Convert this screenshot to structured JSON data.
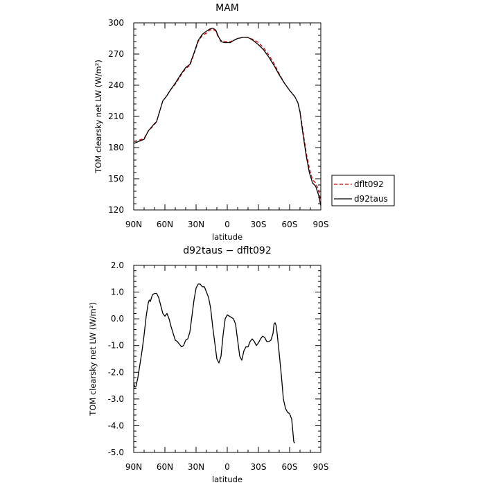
{
  "chart_data": [
    {
      "type": "line",
      "title": "MAM",
      "xlabel": "latitude",
      "ylabel": "TOM clearsky net LW (W/m²)",
      "xlim": [
        90,
        -90
      ],
      "ylim": [
        120,
        300
      ],
      "x_ticks": [
        90,
        60,
        30,
        0,
        -30,
        -60,
        -90
      ],
      "x_tick_labels": [
        "90N",
        "60N",
        "30N",
        "0",
        "30S",
        "60S",
        "90S"
      ],
      "y_ticks": [
        120,
        150,
        180,
        210,
        240,
        270,
        300
      ],
      "y_tick_labels": [
        "120",
        "150",
        "180",
        "210",
        "240",
        "270",
        "300"
      ],
      "legend_position": "right",
      "series": [
        {
          "name": "dflt092",
          "color": "#cc0000",
          "style": "dashed",
          "points": [
            [
              90,
              186
            ],
            [
              85,
              187
            ],
            [
              80,
              189
            ],
            [
              76,
              196
            ],
            [
              71,
              201
            ],
            [
              68,
              205
            ],
            [
              65,
              215
            ],
            [
              62,
              225
            ],
            [
              58,
              230
            ],
            [
              55,
              235
            ],
            [
              50,
              241
            ],
            [
              45,
              249
            ],
            [
              40,
              256
            ],
            [
              36,
              259
            ],
            [
              32,
              270
            ],
            [
              28,
              282
            ],
            [
              24,
              288
            ],
            [
              20,
              290
            ],
            [
              17,
              293
            ],
            [
              14,
              294
            ],
            [
              11,
              292
            ],
            [
              9,
              287
            ],
            [
              6,
              283
            ],
            [
              3,
              282
            ],
            [
              0,
              282
            ],
            [
              -3,
              282
            ],
            [
              -6,
              283
            ],
            [
              -10,
              285
            ],
            [
              -15,
              286
            ],
            [
              -20,
              286
            ],
            [
              -25,
              284
            ],
            [
              -30,
              281
            ],
            [
              -35,
              276
            ],
            [
              -40,
              269
            ],
            [
              -45,
              261
            ],
            [
              -50,
              251
            ],
            [
              -55,
              242
            ],
            [
              -60,
              235
            ],
            [
              -65,
              229
            ],
            [
              -68,
              223
            ],
            [
              -70,
              215
            ],
            [
              -73,
              195
            ],
            [
              -76,
              175
            ],
            [
              -79,
              160
            ],
            [
              -82,
              149
            ],
            [
              -85,
              146
            ],
            [
              -88,
              139
            ],
            [
              -90,
              128
            ]
          ]
        },
        {
          "name": "d92taus",
          "color": "#000000",
          "style": "solid",
          "points": [
            [
              90,
              184
            ],
            [
              85,
              186
            ],
            [
              80,
              188
            ],
            [
              76,
              196
            ],
            [
              71,
              202
            ],
            [
              68,
              205
            ],
            [
              65,
              215
            ],
            [
              62,
              225
            ],
            [
              58,
              230
            ],
            [
              55,
              235
            ],
            [
              50,
              242
            ],
            [
              45,
              250
            ],
            [
              40,
              257
            ],
            [
              36,
              260
            ],
            [
              32,
              271
            ],
            [
              28,
              283
            ],
            [
              24,
              289
            ],
            [
              20,
              292
            ],
            [
              17,
              294
            ],
            [
              14,
              295
            ],
            [
              11,
              293
            ],
            [
              9,
              288
            ],
            [
              6,
              282
            ],
            [
              3,
              281
            ],
            [
              0,
              281
            ],
            [
              -3,
              281
            ],
            [
              -6,
              283
            ],
            [
              -10,
              285
            ],
            [
              -15,
              286
            ],
            [
              -20,
              286
            ],
            [
              -25,
              283
            ],
            [
              -30,
              279
            ],
            [
              -35,
              274
            ],
            [
              -40,
              267
            ],
            [
              -45,
              259
            ],
            [
              -50,
              250
            ],
            [
              -55,
              242
            ],
            [
              -60,
              235
            ],
            [
              -65,
              229
            ],
            [
              -68,
              223
            ],
            [
              -70,
              214
            ],
            [
              -73,
              192
            ],
            [
              -76,
              172
            ],
            [
              -79,
              156
            ],
            [
              -82,
              146
            ],
            [
              -85,
              143
            ],
            [
              -88,
              134
            ],
            [
              -90,
              124
            ]
          ]
        }
      ]
    },
    {
      "type": "line",
      "title": "d92taus − dflt092",
      "xlabel": "latitude",
      "ylabel": "TOM clearsky net LW (W/m²)",
      "xlim": [
        90,
        -90
      ],
      "ylim": [
        -5.0,
        2.0
      ],
      "x_ticks": [
        90,
        60,
        30,
        0,
        -30,
        -60,
        -90
      ],
      "x_tick_labels": [
        "90N",
        "60N",
        "30N",
        "0",
        "30S",
        "60S",
        "90S"
      ],
      "y_ticks": [
        -5.0,
        -4.0,
        -3.0,
        -2.0,
        -1.0,
        0.0,
        1.0,
        2.0
      ],
      "y_tick_labels": [
        "-5.0",
        "-4.0",
        "-3.0",
        "-2.0",
        "-1.0",
        "0.0",
        "1.0",
        "2.0"
      ],
      "series": [
        {
          "color": "#000000",
          "style": "solid",
          "points": [
            [
              90,
              -2.4
            ],
            [
              89,
              -2.55
            ],
            [
              88,
              -2.55
            ],
            [
              86,
              -2.2
            ],
            [
              84,
              -1.7
            ],
            [
              82,
              -1.2
            ],
            [
              80,
              -0.6
            ],
            [
              78,
              0.1
            ],
            [
              76,
              0.6
            ],
            [
              75,
              0.7
            ],
            [
              74,
              0.65
            ],
            [
              72,
              0.9
            ],
            [
              70,
              0.95
            ],
            [
              68,
              0.95
            ],
            [
              66,
              0.8
            ],
            [
              64,
              0.5
            ],
            [
              62,
              0.2
            ],
            [
              60,
              0.1
            ],
            [
              58,
              0.2
            ],
            [
              56,
              0.0
            ],
            [
              54,
              -0.3
            ],
            [
              52,
              -0.55
            ],
            [
              50,
              -0.8
            ],
            [
              48,
              -0.85
            ],
            [
              46,
              -0.95
            ],
            [
              44,
              -1.05
            ],
            [
              42,
              -1.0
            ],
            [
              40,
              -0.8
            ],
            [
              38,
              -0.75
            ],
            [
              36,
              -0.5
            ],
            [
              34,
              0.1
            ],
            [
              32,
              0.7
            ],
            [
              30,
              1.15
            ],
            [
              28,
              1.3
            ],
            [
              26,
              1.3
            ],
            [
              24,
              1.2
            ],
            [
              22,
              1.2
            ],
            [
              20,
              1.0
            ],
            [
              18,
              0.8
            ],
            [
              16,
              0.4
            ],
            [
              14,
              -0.3
            ],
            [
              12,
              -0.9
            ],
            [
              10,
              -1.5
            ],
            [
              8,
              -1.65
            ],
            [
              6,
              -1.4
            ],
            [
              4,
              -0.6
            ],
            [
              2,
              0.0
            ],
            [
              0,
              0.15
            ],
            [
              -2,
              0.1
            ],
            [
              -4,
              0.05
            ],
            [
              -6,
              0.0
            ],
            [
              -8,
              -0.2
            ],
            [
              -10,
              -0.8
            ],
            [
              -12,
              -1.4
            ],
            [
              -14,
              -1.55
            ],
            [
              -16,
              -1.2
            ],
            [
              -18,
              -1.05
            ],
            [
              -20,
              -1.05
            ],
            [
              -22,
              -0.85
            ],
            [
              -24,
              -0.75
            ],
            [
              -26,
              -0.85
            ],
            [
              -28,
              -1.0
            ],
            [
              -30,
              -0.9
            ],
            [
              -32,
              -0.75
            ],
            [
              -34,
              -0.65
            ],
            [
              -36,
              -0.7
            ],
            [
              -38,
              -0.85
            ],
            [
              -40,
              -0.85
            ],
            [
              -42,
              -0.8
            ],
            [
              -44,
              -0.55
            ],
            [
              -45,
              -0.2
            ],
            [
              -46,
              -0.15
            ],
            [
              -47,
              -0.25
            ],
            [
              -48,
              -0.55
            ],
            [
              -50,
              -1.3
            ],
            [
              -52,
              -2.1
            ],
            [
              -54,
              -3.0
            ],
            [
              -56,
              -3.35
            ],
            [
              -58,
              -3.5
            ],
            [
              -60,
              -3.55
            ],
            [
              -62,
              -3.75
            ],
            [
              -64,
              -4.6
            ],
            [
              -65,
              -4.65
            ]
          ]
        }
      ]
    }
  ]
}
